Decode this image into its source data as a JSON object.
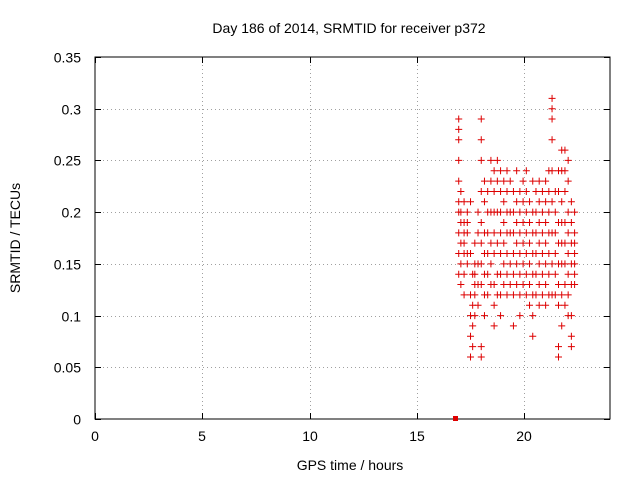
{
  "chart_data": {
    "type": "scatter",
    "title": "Day 186 of 2014, SRMTID for receiver p372",
    "xlabel": "GPS time / hours",
    "ylabel": "SRMTID / TECUs",
    "xlim": [
      0,
      24
    ],
    "ylim": [
      0,
      0.35
    ],
    "xticks": [
      0,
      5,
      10,
      15,
      20
    ],
    "xtick_labels": [
      "0",
      "5",
      "10",
      "15",
      "20"
    ],
    "yticks": [
      0,
      0.05,
      0.1,
      0.15,
      0.2,
      0.25,
      0.3,
      0.35
    ],
    "ytick_labels": [
      "0",
      "0.05",
      "0.1",
      "0.15",
      "0.2",
      "0.25",
      "0.3",
      "0.35"
    ],
    "grid": true,
    "marker": "plus",
    "color": "#dd0000",
    "zero_point": {
      "x": 16.8,
      "y": 0.0
    },
    "series": [
      {
        "name": "SRMTID",
        "points": [
          [
            16.95,
            0.29
          ],
          [
            16.95,
            0.28
          ],
          [
            16.95,
            0.27
          ],
          [
            16.95,
            0.25
          ],
          [
            16.95,
            0.23
          ],
          [
            16.95,
            0.21
          ],
          [
            16.95,
            0.2
          ],
          [
            16.95,
            0.18
          ],
          [
            16.95,
            0.16
          ],
          [
            16.95,
            0.14
          ],
          [
            17.05,
            0.22
          ],
          [
            17.05,
            0.2
          ],
          [
            17.05,
            0.19
          ],
          [
            17.05,
            0.17
          ],
          [
            17.05,
            0.15
          ],
          [
            17.05,
            0.13
          ],
          [
            17.2,
            0.21
          ],
          [
            17.2,
            0.19
          ],
          [
            17.2,
            0.18
          ],
          [
            17.2,
            0.17
          ],
          [
            17.2,
            0.16
          ],
          [
            17.2,
            0.14
          ],
          [
            17.2,
            0.12
          ],
          [
            17.35,
            0.2
          ],
          [
            17.35,
            0.19
          ],
          [
            17.35,
            0.18
          ],
          [
            17.35,
            0.16
          ],
          [
            17.35,
            0.15
          ],
          [
            17.5,
            0.21
          ],
          [
            17.5,
            0.16
          ],
          [
            17.5,
            0.12
          ],
          [
            17.5,
            0.1
          ],
          [
            17.5,
            0.08
          ],
          [
            17.5,
            0.06
          ],
          [
            17.6,
            0.14
          ],
          [
            17.6,
            0.11
          ],
          [
            17.6,
            0.09
          ],
          [
            17.6,
            0.07
          ],
          [
            17.7,
            0.17
          ],
          [
            17.7,
            0.15
          ],
          [
            17.7,
            0.14
          ],
          [
            17.7,
            0.13
          ],
          [
            17.7,
            0.12
          ],
          [
            17.7,
            0.1
          ],
          [
            17.85,
            0.2
          ],
          [
            17.85,
            0.18
          ],
          [
            17.85,
            0.15
          ],
          [
            17.85,
            0.13
          ],
          [
            17.85,
            0.11
          ],
          [
            18.0,
            0.29
          ],
          [
            18.0,
            0.27
          ],
          [
            18.0,
            0.25
          ],
          [
            18.0,
            0.22
          ],
          [
            18.0,
            0.19
          ],
          [
            18.0,
            0.17
          ],
          [
            18.0,
            0.15
          ],
          [
            18.0,
            0.13
          ],
          [
            18.0,
            0.07
          ],
          [
            18.0,
            0.06
          ],
          [
            18.15,
            0.23
          ],
          [
            18.15,
            0.21
          ],
          [
            18.15,
            0.18
          ],
          [
            18.15,
            0.16
          ],
          [
            18.15,
            0.14
          ],
          [
            18.15,
            0.12
          ],
          [
            18.15,
            0.1
          ],
          [
            18.3,
            0.22
          ],
          [
            18.3,
            0.2
          ],
          [
            18.3,
            0.18
          ],
          [
            18.3,
            0.16
          ],
          [
            18.3,
            0.14
          ],
          [
            18.3,
            0.12
          ],
          [
            18.45,
            0.25
          ],
          [
            18.45,
            0.23
          ],
          [
            18.45,
            0.2
          ],
          [
            18.45,
            0.17
          ],
          [
            18.45,
            0.15
          ],
          [
            18.45,
            0.13
          ],
          [
            18.6,
            0.24
          ],
          [
            18.6,
            0.22
          ],
          [
            18.6,
            0.2
          ],
          [
            18.6,
            0.18
          ],
          [
            18.6,
            0.16
          ],
          [
            18.6,
            0.13
          ],
          [
            18.6,
            0.11
          ],
          [
            18.6,
            0.09
          ],
          [
            18.75,
            0.25
          ],
          [
            18.75,
            0.23
          ],
          [
            18.75,
            0.2
          ],
          [
            18.75,
            0.17
          ],
          [
            18.75,
            0.14
          ],
          [
            18.75,
            0.12
          ],
          [
            18.9,
            0.24
          ],
          [
            18.9,
            0.22
          ],
          [
            18.9,
            0.2
          ],
          [
            18.9,
            0.18
          ],
          [
            18.9,
            0.16
          ],
          [
            18.9,
            0.14
          ],
          [
            18.9,
            0.12
          ],
          [
            18.9,
            0.1
          ],
          [
            19.05,
            0.23
          ],
          [
            19.05,
            0.21
          ],
          [
            19.05,
            0.19
          ],
          [
            19.05,
            0.17
          ],
          [
            19.05,
            0.15
          ],
          [
            19.05,
            0.13
          ],
          [
            19.2,
            0.24
          ],
          [
            19.2,
            0.22
          ],
          [
            19.2,
            0.2
          ],
          [
            19.2,
            0.18
          ],
          [
            19.2,
            0.16
          ],
          [
            19.2,
            0.14
          ],
          [
            19.2,
            0.12
          ],
          [
            19.35,
            0.23
          ],
          [
            19.35,
            0.2
          ],
          [
            19.35,
            0.18
          ],
          [
            19.35,
            0.15
          ],
          [
            19.35,
            0.13
          ],
          [
            19.5,
            0.22
          ],
          [
            19.5,
            0.2
          ],
          [
            19.5,
            0.18
          ],
          [
            19.5,
            0.16
          ],
          [
            19.5,
            0.14
          ],
          [
            19.5,
            0.12
          ],
          [
            19.5,
            0.09
          ],
          [
            19.65,
            0.24
          ],
          [
            19.65,
            0.21
          ],
          [
            19.65,
            0.19
          ],
          [
            19.65,
            0.17
          ],
          [
            19.65,
            0.15
          ],
          [
            19.65,
            0.13
          ],
          [
            19.8,
            0.22
          ],
          [
            19.8,
            0.2
          ],
          [
            19.8,
            0.18
          ],
          [
            19.8,
            0.16
          ],
          [
            19.8,
            0.14
          ],
          [
            19.8,
            0.12
          ],
          [
            19.8,
            0.1
          ],
          [
            19.95,
            0.23
          ],
          [
            19.95,
            0.21
          ],
          [
            19.95,
            0.19
          ],
          [
            19.95,
            0.17
          ],
          [
            19.95,
            0.15
          ],
          [
            19.95,
            0.13
          ],
          [
            20.1,
            0.24
          ],
          [
            20.1,
            0.22
          ],
          [
            20.1,
            0.2
          ],
          [
            20.1,
            0.18
          ],
          [
            20.1,
            0.16
          ],
          [
            20.1,
            0.14
          ],
          [
            20.1,
            0.12
          ],
          [
            20.25,
            0.21
          ],
          [
            20.25,
            0.19
          ],
          [
            20.25,
            0.17
          ],
          [
            20.25,
            0.15
          ],
          [
            20.25,
            0.13
          ],
          [
            20.25,
            0.11
          ],
          [
            20.4,
            0.23
          ],
          [
            20.4,
            0.2
          ],
          [
            20.4,
            0.18
          ],
          [
            20.4,
            0.16
          ],
          [
            20.4,
            0.14
          ],
          [
            20.4,
            0.12
          ],
          [
            20.4,
            0.1
          ],
          [
            20.4,
            0.08
          ],
          [
            20.55,
            0.22
          ],
          [
            20.55,
            0.2
          ],
          [
            20.55,
            0.18
          ],
          [
            20.55,
            0.16
          ],
          [
            20.55,
            0.14
          ],
          [
            20.55,
            0.12
          ],
          [
            20.7,
            0.23
          ],
          [
            20.7,
            0.21
          ],
          [
            20.7,
            0.19
          ],
          [
            20.7,
            0.17
          ],
          [
            20.7,
            0.15
          ],
          [
            20.7,
            0.13
          ],
          [
            20.7,
            0.11
          ],
          [
            20.85,
            0.22
          ],
          [
            20.85,
            0.2
          ],
          [
            20.85,
            0.18
          ],
          [
            20.85,
            0.16
          ],
          [
            20.85,
            0.14
          ],
          [
            20.85,
            0.12
          ],
          [
            21.0,
            0.23
          ],
          [
            21.0,
            0.21
          ],
          [
            21.0,
            0.19
          ],
          [
            21.0,
            0.17
          ],
          [
            21.0,
            0.15
          ],
          [
            21.0,
            0.13
          ],
          [
            21.0,
            0.11
          ],
          [
            21.15,
            0.24
          ],
          [
            21.15,
            0.22
          ],
          [
            21.15,
            0.2
          ],
          [
            21.15,
            0.18
          ],
          [
            21.15,
            0.16
          ],
          [
            21.15,
            0.14
          ],
          [
            21.15,
            0.12
          ],
          [
            21.3,
            0.31
          ],
          [
            21.3,
            0.3
          ],
          [
            21.3,
            0.29
          ],
          [
            21.3,
            0.27
          ],
          [
            21.3,
            0.24
          ],
          [
            21.3,
            0.21
          ],
          [
            21.3,
            0.18
          ],
          [
            21.3,
            0.15
          ],
          [
            21.3,
            0.12
          ],
          [
            21.45,
            0.22
          ],
          [
            21.45,
            0.2
          ],
          [
            21.45,
            0.18
          ],
          [
            21.45,
            0.16
          ],
          [
            21.45,
            0.14
          ],
          [
            21.45,
            0.12
          ],
          [
            21.6,
            0.24
          ],
          [
            21.6,
            0.22
          ],
          [
            21.6,
            0.19
          ],
          [
            21.6,
            0.17
          ],
          [
            21.6,
            0.15
          ],
          [
            21.6,
            0.13
          ],
          [
            21.6,
            0.11
          ],
          [
            21.6,
            0.07
          ],
          [
            21.6,
            0.06
          ],
          [
            21.75,
            0.26
          ],
          [
            21.75,
            0.24
          ],
          [
            21.75,
            0.21
          ],
          [
            21.75,
            0.19
          ],
          [
            21.75,
            0.17
          ],
          [
            21.75,
            0.15
          ],
          [
            21.75,
            0.12
          ],
          [
            21.75,
            0.09
          ],
          [
            21.9,
            0.26
          ],
          [
            21.9,
            0.24
          ],
          [
            21.9,
            0.22
          ],
          [
            21.9,
            0.19
          ],
          [
            21.9,
            0.17
          ],
          [
            21.9,
            0.15
          ],
          [
            21.9,
            0.13
          ],
          [
            21.9,
            0.11
          ],
          [
            22.05,
            0.25
          ],
          [
            22.05,
            0.23
          ],
          [
            22.05,
            0.2
          ],
          [
            22.05,
            0.18
          ],
          [
            22.05,
            0.16
          ],
          [
            22.05,
            0.14
          ],
          [
            22.05,
            0.12
          ],
          [
            22.05,
            0.1
          ],
          [
            22.2,
            0.21
          ],
          [
            22.2,
            0.19
          ],
          [
            22.2,
            0.17
          ],
          [
            22.2,
            0.15
          ],
          [
            22.2,
            0.13
          ],
          [
            22.2,
            0.1
          ],
          [
            22.2,
            0.08
          ],
          [
            22.2,
            0.07
          ],
          [
            22.35,
            0.2
          ],
          [
            22.35,
            0.18
          ],
          [
            22.35,
            0.17
          ],
          [
            22.35,
            0.16
          ],
          [
            22.35,
            0.15
          ],
          [
            22.35,
            0.14
          ],
          [
            22.35,
            0.13
          ]
        ]
      }
    ]
  }
}
